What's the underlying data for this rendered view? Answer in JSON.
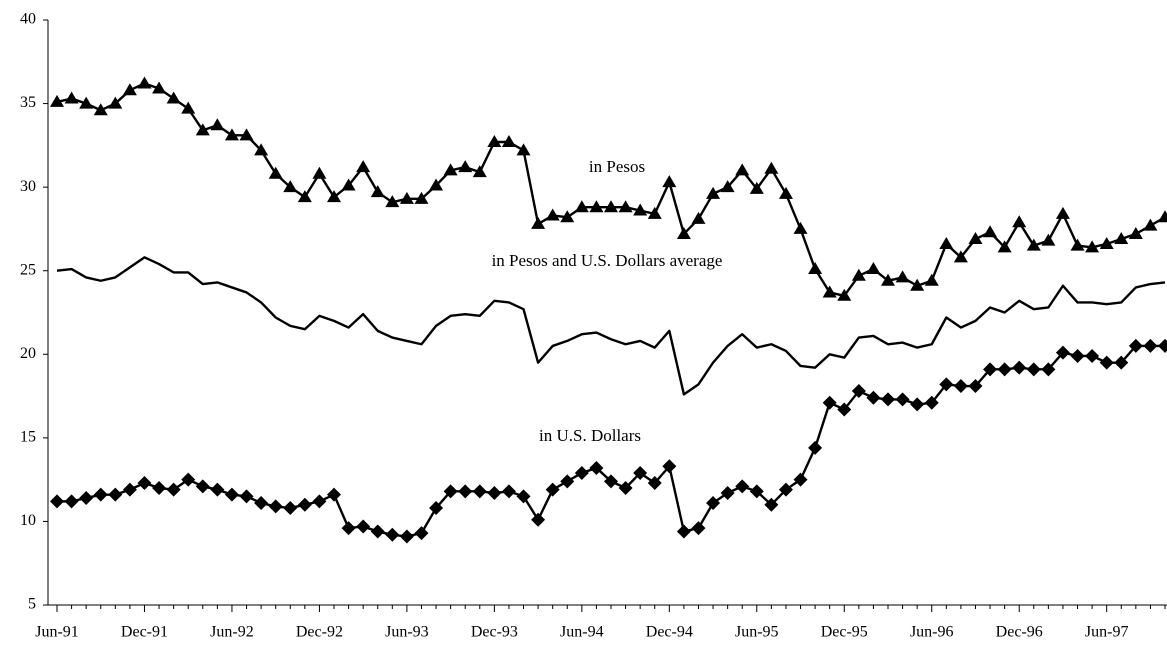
{
  "chart_data": {
    "type": "line",
    "categories": [
      "Jun-91",
      null,
      null,
      null,
      null,
      null,
      "Dec-91",
      null,
      null,
      null,
      null,
      null,
      "Jun-92",
      null,
      null,
      null,
      null,
      null,
      "Dec-92",
      null,
      null,
      null,
      null,
      null,
      "Jun-93",
      null,
      null,
      null,
      null,
      null,
      "Dec-93",
      null,
      null,
      null,
      null,
      null,
      "Jun-94",
      null,
      null,
      null,
      null,
      null,
      "Dec-94",
      null,
      null,
      null,
      null,
      null,
      "Jun-95",
      null,
      null,
      null,
      null,
      null,
      "Dec-95",
      null,
      null,
      null,
      null,
      null,
      "Jun-96",
      null,
      null,
      null,
      null,
      null,
      "Dec-96",
      null,
      null,
      null,
      null,
      null,
      "Jun-97",
      null,
      null,
      null,
      null
    ],
    "series": [
      {
        "name": "in Pesos",
        "color": "#000000",
        "marker": "triangle",
        "values": [
          35.1,
          35.3,
          35.0,
          34.6,
          35.0,
          35.8,
          36.2,
          35.9,
          35.3,
          34.7,
          33.4,
          33.7,
          33.1,
          33.1,
          32.2,
          30.8,
          30.0,
          29.4,
          30.8,
          29.4,
          30.1,
          31.2,
          29.7,
          29.1,
          29.3,
          29.3,
          30.1,
          31.0,
          31.2,
          30.9,
          32.7,
          32.7,
          32.2,
          27.8,
          28.3,
          28.2,
          28.8,
          28.8,
          28.8,
          28.8,
          28.6,
          28.4,
          30.3,
          27.2,
          28.1,
          29.6,
          30.0,
          31.0,
          29.9,
          31.1,
          29.6,
          27.5,
          25.1,
          23.7,
          23.5,
          24.7,
          25.1,
          24.4,
          24.6,
          24.1,
          24.4,
          26.6,
          25.8,
          26.9,
          27.3,
          26.4,
          27.9,
          26.5,
          26.8,
          28.4,
          26.5,
          26.4,
          26.6,
          26.9,
          27.2,
          27.7,
          28.2
        ]
      },
      {
        "name": "in Pesos and U.S. Dollars average",
        "color": "#000000",
        "marker": "none",
        "values": [
          25.0,
          25.1,
          24.6,
          24.4,
          24.6,
          25.2,
          25.8,
          25.4,
          24.9,
          24.9,
          24.2,
          24.3,
          24.0,
          23.7,
          23.1,
          22.2,
          21.7,
          21.5,
          22.3,
          22.0,
          21.6,
          22.4,
          21.4,
          21.0,
          20.8,
          20.6,
          21.7,
          22.3,
          22.4,
          22.3,
          23.2,
          23.1,
          22.7,
          19.5,
          20.5,
          20.8,
          21.2,
          21.3,
          20.9,
          20.6,
          20.8,
          20.4,
          21.4,
          17.6,
          18.2,
          19.5,
          20.5,
          21.2,
          20.4,
          20.6,
          20.2,
          19.3,
          19.2,
          20.0,
          19.8,
          21.0,
          21.1,
          20.6,
          20.7,
          20.4,
          20.6,
          22.2,
          21.6,
          22.0,
          22.8,
          22.5,
          23.2,
          22.7,
          22.8,
          24.1,
          23.1,
          23.1,
          23.0,
          23.1,
          24.0,
          24.2,
          24.3
        ]
      },
      {
        "name": "in U.S. Dollars",
        "color": "#000000",
        "marker": "diamond",
        "values": [
          11.2,
          11.2,
          11.4,
          11.6,
          11.6,
          11.9,
          12.3,
          12.0,
          11.9,
          12.5,
          12.1,
          11.9,
          11.6,
          11.5,
          11.1,
          10.9,
          10.8,
          11.0,
          11.2,
          11.6,
          9.6,
          9.7,
          9.4,
          9.2,
          9.1,
          9.3,
          10.8,
          11.8,
          11.8,
          11.8,
          11.7,
          11.8,
          11.5,
          10.1,
          11.9,
          12.4,
          12.9,
          13.2,
          12.4,
          12.0,
          12.9,
          12.3,
          13.3,
          9.4,
          9.6,
          11.1,
          11.7,
          12.1,
          11.8,
          11.0,
          11.9,
          12.5,
          14.4,
          17.1,
          16.7,
          17.8,
          17.4,
          17.3,
          17.3,
          17.0,
          17.1,
          18.2,
          18.1,
          18.1,
          19.1,
          19.1,
          19.2,
          19.1,
          19.1,
          20.1,
          19.9,
          19.9,
          19.5,
          19.5,
          20.5,
          20.5,
          20.5
        ]
      }
    ],
    "ylim": [
      5,
      40
    ],
    "yticks": [
      5,
      10,
      15,
      20,
      25,
      30,
      35,
      40
    ],
    "grid": false
  }
}
